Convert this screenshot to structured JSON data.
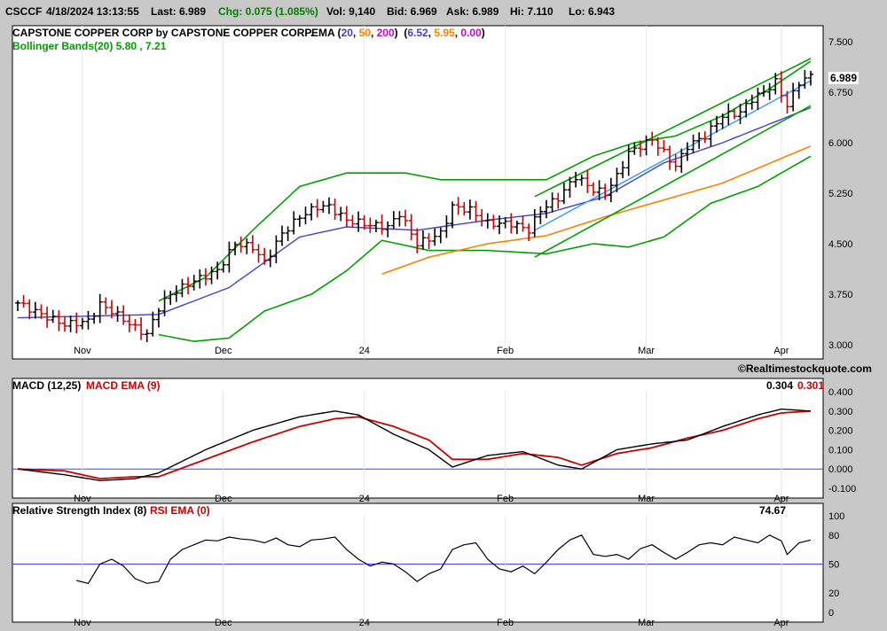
{
  "header": {
    "symbol": "CSCCF",
    "datetime": "4/18/2024 13:13:55",
    "last": "Last: 6.989",
    "change": "Chg: 0.075 (1.085%)",
    "volume": "Vol: 9,140",
    "bid": "Bid: 6.969",
    "ask": "Ask: 6.989",
    "high": "Hi: 7.110",
    "low": "Lo: 6.943"
  },
  "price_panel": {
    "title": "CAPSTONE COPPER CORP by CAPSTONE COPPER CORP.",
    "ema_label": "EMA (",
    "ema_periods": [
      "20",
      "50",
      "200"
    ],
    "ema_values": [
      "6.52",
      "5.95",
      "0.00"
    ],
    "bollinger": "Bollinger Bands(20) 5.80 , 7.21",
    "last_price_tag": "6.989",
    "watermark": "©Realtimestockquote.com"
  },
  "macd_panel": {
    "title": "MACD (12,25)",
    "ema_title": "MACD EMA (9)",
    "macd_value": "0.304",
    "signal_value": "0.301"
  },
  "rsi_panel": {
    "title": "Relative Strength Index (8)",
    "ema_title": "RSI EMA (0)",
    "value": "74.67"
  },
  "colors": {
    "background": "#ffffff",
    "frame": "#c8c8c8",
    "up_bar": "#000000",
    "down_bar": "#cc0000",
    "ema20": "#4040d0",
    "ema50": "#ff8000",
    "ema200": "#cc00cc",
    "bollinger": "#00a000",
    "trend": "#00a000",
    "regression": "#3399ff",
    "macd": "#000000",
    "signal": "#cc0000",
    "ref_line": "#4040ff"
  },
  "chart_data": [
    {
      "type": "ohlc",
      "panel": "price",
      "x_ticks": [
        "Nov",
        "Dec",
        "24",
        "Feb",
        "Mar",
        "Apr"
      ],
      "y_ticks": [
        "7.500",
        "6.750",
        "6.000",
        "5.250",
        "4.500",
        "3.750",
        "3.000"
      ],
      "ylim": [
        3.0,
        7.5
      ],
      "close_anchors": [
        [
          0,
          3.62
        ],
        [
          4,
          3.45
        ],
        [
          8,
          3.3
        ],
        [
          12,
          3.35
        ],
        [
          14,
          3.6
        ],
        [
          16,
          3.5
        ],
        [
          20,
          3.25
        ],
        [
          22,
          3.15
        ],
        [
          24,
          3.55
        ],
        [
          26,
          3.75
        ],
        [
          30,
          3.95
        ],
        [
          34,
          4.1
        ],
        [
          37,
          4.5
        ],
        [
          40,
          4.45
        ],
        [
          42,
          4.22
        ],
        [
          45,
          4.65
        ],
        [
          48,
          4.9
        ],
        [
          51,
          5.05
        ],
        [
          53,
          5.05
        ],
        [
          56,
          4.85
        ],
        [
          60,
          4.78
        ],
        [
          63,
          4.75
        ],
        [
          65,
          4.95
        ],
        [
          68,
          4.5
        ],
        [
          72,
          4.65
        ],
        [
          74,
          5.05
        ],
        [
          77,
          5.0
        ],
        [
          80,
          4.8
        ],
        [
          84,
          4.8
        ],
        [
          87,
          4.7
        ],
        [
          89,
          5.0
        ],
        [
          92,
          5.18
        ],
        [
          95,
          5.5
        ],
        [
          98,
          5.3
        ],
        [
          100,
          5.25
        ],
        [
          102,
          5.5
        ],
        [
          104,
          5.85
        ],
        [
          106,
          5.95
        ],
        [
          108,
          6.05
        ],
        [
          110,
          5.85
        ],
        [
          112,
          5.65
        ],
        [
          114,
          5.95
        ],
        [
          117,
          6.1
        ],
        [
          120,
          6.4
        ],
        [
          123,
          6.45
        ],
        [
          125,
          6.65
        ],
        [
          127,
          6.75
        ],
        [
          129,
          6.9
        ],
        [
          131,
          6.55
        ],
        [
          133,
          6.9
        ],
        [
          135,
          6.99
        ]
      ],
      "bars": 136,
      "ema20": [
        [
          0,
          3.4
        ],
        [
          24,
          3.45
        ],
        [
          36,
          3.85
        ],
        [
          48,
          4.6
        ],
        [
          56,
          4.75
        ],
        [
          68,
          4.7
        ],
        [
          80,
          4.85
        ],
        [
          90,
          4.95
        ],
        [
          100,
          5.2
        ],
        [
          110,
          5.7
        ],
        [
          120,
          6.0
        ],
        [
          135,
          6.52
        ]
      ],
      "ema50": [
        [
          62,
          4.05
        ],
        [
          70,
          4.3
        ],
        [
          80,
          4.5
        ],
        [
          90,
          4.62
        ],
        [
          100,
          4.9
        ],
        [
          110,
          5.15
        ],
        [
          120,
          5.4
        ],
        [
          135,
          5.95
        ]
      ],
      "bollinger_upper": [
        [
          24,
          3.65
        ],
        [
          32,
          4.0
        ],
        [
          40,
          4.7
        ],
        [
          48,
          5.35
        ],
        [
          56,
          5.55
        ],
        [
          66,
          5.55
        ],
        [
          72,
          5.45
        ],
        [
          80,
          5.45
        ],
        [
          90,
          5.45
        ],
        [
          98,
          5.8
        ],
        [
          105,
          6.0
        ],
        [
          112,
          6.1
        ],
        [
          120,
          6.4
        ],
        [
          128,
          6.8
        ],
        [
          135,
          7.21
        ]
      ],
      "bollinger_lower": [
        [
          24,
          3.15
        ],
        [
          30,
          3.05
        ],
        [
          36,
          3.1
        ],
        [
          42,
          3.5
        ],
        [
          50,
          3.75
        ],
        [
          56,
          4.1
        ],
        [
          62,
          4.55
        ],
        [
          70,
          4.4
        ],
        [
          80,
          4.4
        ],
        [
          90,
          4.35
        ],
        [
          98,
          4.5
        ],
        [
          104,
          4.45
        ],
        [
          110,
          4.6
        ],
        [
          118,
          5.1
        ],
        [
          126,
          5.35
        ],
        [
          135,
          5.8
        ]
      ],
      "regression_line": [
        [
          88,
          4.7
        ],
        [
          135,
          6.92
        ]
      ],
      "trend_channel_upper": [
        [
          88,
          5.2
        ],
        [
          135,
          7.25
        ]
      ],
      "trend_channel_lower": [
        [
          88,
          4.3
        ],
        [
          135,
          6.55
        ]
      ]
    },
    {
      "type": "line",
      "panel": "macd",
      "x_ticks": [
        "Nov",
        "Dec",
        "24",
        "Feb",
        "Mar",
        "Apr"
      ],
      "y_ticks": [
        "0.400",
        "0.300",
        "0.200",
        "0.100",
        "0.000",
        "-0.100"
      ],
      "ylim": [
        -0.12,
        0.42
      ],
      "series": [
        {
          "name": "MACD (12,25)",
          "points": [
            [
              0,
              0.0
            ],
            [
              8,
              -0.03
            ],
            [
              14,
              -0.06
            ],
            [
              20,
              -0.05
            ],
            [
              24,
              -0.02
            ],
            [
              32,
              0.1
            ],
            [
              40,
              0.2
            ],
            [
              48,
              0.27
            ],
            [
              54,
              0.3
            ],
            [
              58,
              0.28
            ],
            [
              64,
              0.18
            ],
            [
              70,
              0.1
            ],
            [
              74,
              0.01
            ],
            [
              80,
              0.07
            ],
            [
              86,
              0.09
            ],
            [
              92,
              0.02
            ],
            [
              96,
              0.0
            ],
            [
              102,
              0.1
            ],
            [
              108,
              0.13
            ],
            [
              114,
              0.15
            ],
            [
              120,
              0.22
            ],
            [
              126,
              0.28
            ],
            [
              130,
              0.31
            ],
            [
              135,
              0.3
            ]
          ]
        },
        {
          "name": "MACD EMA (9)",
          "points": [
            [
              0,
              0.0
            ],
            [
              8,
              -0.01
            ],
            [
              14,
              -0.05
            ],
            [
              20,
              -0.04
            ],
            [
              24,
              -0.04
            ],
            [
              32,
              0.05
            ],
            [
              40,
              0.14
            ],
            [
              48,
              0.22
            ],
            [
              54,
              0.26
            ],
            [
              58,
              0.27
            ],
            [
              64,
              0.22
            ],
            [
              70,
              0.15
            ],
            [
              74,
              0.05
            ],
            [
              80,
              0.05
            ],
            [
              86,
              0.08
            ],
            [
              92,
              0.06
            ],
            [
              96,
              0.02
            ],
            [
              102,
              0.08
            ],
            [
              108,
              0.11
            ],
            [
              114,
              0.16
            ],
            [
              120,
              0.2
            ],
            [
              126,
              0.26
            ],
            [
              130,
              0.29
            ],
            [
              135,
              0.3
            ]
          ]
        }
      ]
    },
    {
      "type": "line",
      "panel": "rsi",
      "x_ticks": [
        "Nov",
        "Dec",
        "24",
        "Feb",
        "Mar",
        "Apr"
      ],
      "y_ticks": [
        "100",
        "80",
        "50",
        "20",
        "0"
      ],
      "ylim": [
        0,
        100
      ],
      "series": [
        {
          "name": "Relative Strength Index (8)",
          "points": [
            [
              10,
              33
            ],
            [
              12,
              30
            ],
            [
              14,
              50
            ],
            [
              16,
              55
            ],
            [
              18,
              48
            ],
            [
              20,
              35
            ],
            [
              22,
              30
            ],
            [
              24,
              32
            ],
            [
              26,
              55
            ],
            [
              28,
              65
            ],
            [
              30,
              70
            ],
            [
              32,
              75
            ],
            [
              34,
              74
            ],
            [
              36,
              78
            ],
            [
              38,
              76
            ],
            [
              40,
              75
            ],
            [
              42,
              72
            ],
            [
              44,
              77
            ],
            [
              46,
              70
            ],
            [
              48,
              68
            ],
            [
              50,
              75
            ],
            [
              52,
              76
            ],
            [
              54,
              78
            ],
            [
              56,
              65
            ],
            [
              58,
              55
            ],
            [
              60,
              48
            ],
            [
              62,
              52
            ],
            [
              64,
              50
            ],
            [
              66,
              42
            ],
            [
              68,
              32
            ],
            [
              70,
              40
            ],
            [
              72,
              45
            ],
            [
              74,
              65
            ],
            [
              76,
              70
            ],
            [
              78,
              72
            ],
            [
              80,
              55
            ],
            [
              82,
              45
            ],
            [
              84,
              42
            ],
            [
              86,
              48
            ],
            [
              88,
              40
            ],
            [
              90,
              52
            ],
            [
              92,
              65
            ],
            [
              94,
              75
            ],
            [
              96,
              80
            ],
            [
              98,
              60
            ],
            [
              100,
              58
            ],
            [
              102,
              60
            ],
            [
              104,
              55
            ],
            [
              106,
              66
            ],
            [
              108,
              70
            ],
            [
              110,
              62
            ],
            [
              112,
              55
            ],
            [
              114,
              62
            ],
            [
              116,
              70
            ],
            [
              118,
              72
            ],
            [
              120,
              70
            ],
            [
              122,
              78
            ],
            [
              124,
              75
            ],
            [
              126,
              72
            ],
            [
              128,
              80
            ],
            [
              130,
              74
            ],
            [
              131,
              60
            ],
            [
              133,
              72
            ],
            [
              135,
              75
            ]
          ]
        }
      ],
      "reference": 50
    }
  ]
}
